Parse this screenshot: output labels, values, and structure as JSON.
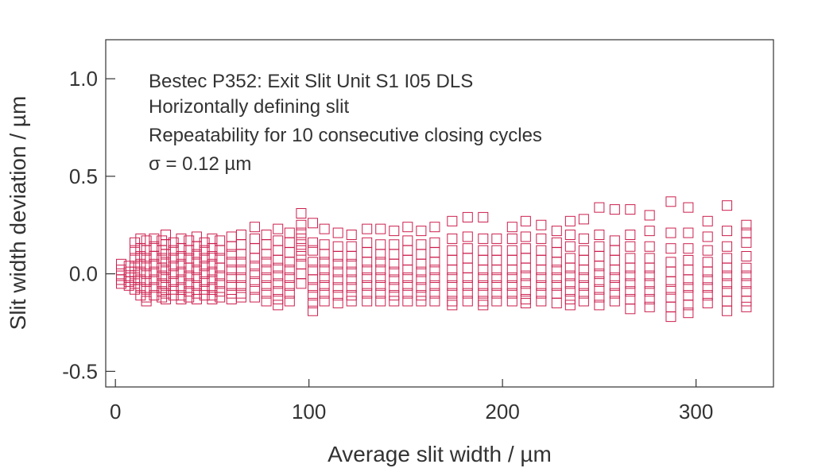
{
  "chart_data": {
    "type": "scatter",
    "marker": "open-square",
    "title": "",
    "annotations": [
      "Bestec P352: Exit Slit Unit S1 I05 DLS",
      "Horizontally defining slit",
      "Repeatability for 10 consecutive closing cycles",
      "σ = 0.12 µm"
    ],
    "xlabel": "Average slit width / µm",
    "ylabel": "Slit width deviation / µm",
    "xlim": [
      -5,
      340
    ],
    "ylim": [
      -0.58,
      1.2
    ],
    "xticks": [
      0,
      100,
      200,
      300
    ],
    "xtick_labels": [
      "0",
      "100",
      "200",
      "300"
    ],
    "yticks": [
      1.0,
      0.5,
      0.0,
      -0.5
    ],
    "ytick_labels": [
      "1.0",
      "0.5",
      "0.0",
      "-0.5"
    ],
    "grid": false,
    "colors": {
      "marker": "#cc1f4e",
      "axis": "#333333"
    },
    "columns": [
      {
        "x": 3,
        "y": [
          0.05,
          0.02,
          -0.01,
          -0.03,
          -0.05
        ]
      },
      {
        "x": 7,
        "y": [
          0.04,
          0.01,
          -0.02,
          -0.04,
          -0.06
        ]
      },
      {
        "x": 10,
        "y": [
          0.16,
          0.12,
          0.08,
          0.04,
          0.01,
          -0.02,
          -0.05,
          -0.08
        ]
      },
      {
        "x": 13,
        "y": [
          0.18,
          0.13,
          0.09,
          0.05,
          0.01,
          -0.03,
          -0.07,
          -0.11
        ]
      },
      {
        "x": 16,
        "y": [
          0.17,
          0.12,
          0.08,
          0.04,
          0.0,
          -0.04,
          -0.08,
          -0.12,
          -0.14
        ]
      },
      {
        "x": 20,
        "y": [
          0.18,
          0.14,
          0.09,
          0.05,
          0.01,
          -0.03,
          -0.07,
          -0.11
        ]
      },
      {
        "x": 24,
        "y": [
          0.17,
          0.12,
          0.08,
          0.03,
          -0.01,
          -0.05,
          -0.09,
          -0.12
        ]
      },
      {
        "x": 26,
        "y": [
          0.2,
          0.15,
          0.1,
          0.06,
          0.02,
          -0.02,
          -0.06,
          -0.1,
          -0.13
        ]
      },
      {
        "x": 30,
        "y": [
          0.16,
          0.12,
          0.08,
          0.04,
          0.0,
          -0.04,
          -0.08,
          -0.11
        ]
      },
      {
        "x": 34,
        "y": [
          0.18,
          0.13,
          0.09,
          0.05,
          0.01,
          -0.03,
          -0.07,
          -0.11,
          -0.13
        ]
      },
      {
        "x": 38,
        "y": [
          0.17,
          0.12,
          0.08,
          0.03,
          -0.01,
          -0.05,
          -0.09,
          -0.12
        ]
      },
      {
        "x": 42,
        "y": [
          0.19,
          0.14,
          0.1,
          0.06,
          0.02,
          -0.02,
          -0.06,
          -0.1,
          -0.13
        ]
      },
      {
        "x": 46,
        "y": [
          0.16,
          0.12,
          0.08,
          0.04,
          0.0,
          -0.04,
          -0.08,
          -0.11
        ]
      },
      {
        "x": 50,
        "y": [
          0.18,
          0.13,
          0.09,
          0.05,
          0.01,
          -0.03,
          -0.07,
          -0.11,
          -0.13
        ]
      },
      {
        "x": 54,
        "y": [
          0.17,
          0.12,
          0.08,
          0.03,
          -0.01,
          -0.05,
          -0.09,
          -0.12
        ]
      },
      {
        "x": 60,
        "y": [
          0.19,
          0.14,
          0.1,
          0.06,
          0.02,
          -0.02,
          -0.06,
          -0.1,
          -0.13
        ]
      },
      {
        "x": 65,
        "y": [
          0.2,
          0.15,
          0.1,
          0.06,
          0.02,
          -0.02,
          -0.06,
          -0.1,
          -0.12
        ]
      },
      {
        "x": 72,
        "y": [
          0.24,
          0.18,
          0.13,
          0.08,
          0.04,
          0.0,
          -0.04,
          -0.08,
          -0.12
        ]
      },
      {
        "x": 78,
        "y": [
          0.2,
          0.15,
          0.1,
          0.06,
          0.02,
          -0.02,
          -0.06,
          -0.1,
          -0.14
        ]
      },
      {
        "x": 84,
        "y": [
          0.23,
          0.17,
          0.12,
          0.07,
          0.03,
          -0.01,
          -0.05,
          -0.09,
          -0.13,
          -0.16
        ]
      },
      {
        "x": 90,
        "y": [
          0.21,
          0.16,
          0.11,
          0.06,
          0.02,
          -0.02,
          -0.06,
          -0.1,
          -0.14
        ]
      },
      {
        "x": 96,
        "y": [
          0.31,
          0.25,
          0.21,
          0.18,
          0.15,
          0.12,
          0.09,
          0.05,
          0.0,
          -0.05
        ]
      },
      {
        "x": 102,
        "y": [
          0.26,
          0.16,
          0.12,
          0.06,
          0.02,
          -0.03,
          -0.07,
          -0.11,
          -0.15,
          -0.19
        ]
      },
      {
        "x": 108,
        "y": [
          0.23,
          0.15,
          0.1,
          0.06,
          0.02,
          -0.02,
          -0.06,
          -0.1,
          -0.14
        ]
      },
      {
        "x": 115,
        "y": [
          0.21,
          0.14,
          0.09,
          0.05,
          0.01,
          -0.03,
          -0.07,
          -0.11,
          -0.15
        ]
      },
      {
        "x": 122,
        "y": [
          0.2,
          0.14,
          0.09,
          0.05,
          0.01,
          -0.03,
          -0.07,
          -0.11,
          -0.14
        ]
      },
      {
        "x": 130,
        "y": [
          0.23,
          0.16,
          0.11,
          0.06,
          0.02,
          -0.02,
          -0.06,
          -0.1,
          -0.14
        ]
      },
      {
        "x": 137,
        "y": [
          0.23,
          0.15,
          0.1,
          0.06,
          0.02,
          -0.02,
          -0.06,
          -0.1,
          -0.14
        ]
      },
      {
        "x": 144,
        "y": [
          0.22,
          0.15,
          0.1,
          0.05,
          0.01,
          -0.03,
          -0.07,
          -0.11,
          -0.14
        ]
      },
      {
        "x": 151,
        "y": [
          0.24,
          0.17,
          0.12,
          0.07,
          0.02,
          -0.02,
          -0.06,
          -0.1,
          -0.14
        ]
      },
      {
        "x": 158,
        "y": [
          0.22,
          0.15,
          0.1,
          0.05,
          0.01,
          -0.03,
          -0.07,
          -0.11,
          -0.14
        ]
      },
      {
        "x": 165,
        "y": [
          0.24,
          0.16,
          0.11,
          0.06,
          0.02,
          -0.02,
          -0.06,
          -0.1,
          -0.14
        ]
      },
      {
        "x": 174,
        "y": [
          0.27,
          0.18,
          0.12,
          0.07,
          0.02,
          -0.02,
          -0.06,
          -0.1,
          -0.14,
          -0.16
        ]
      },
      {
        "x": 182,
        "y": [
          0.29,
          0.19,
          0.13,
          0.08,
          0.03,
          -0.02,
          -0.06,
          -0.1,
          -0.14
        ]
      },
      {
        "x": 190,
        "y": [
          0.29,
          0.18,
          0.12,
          0.07,
          0.02,
          -0.02,
          -0.06,
          -0.1,
          -0.14,
          -0.16
        ]
      },
      {
        "x": 197,
        "y": [
          0.18,
          0.12,
          0.07,
          0.02,
          -0.02,
          -0.06,
          -0.1,
          -0.14
        ]
      },
      {
        "x": 205,
        "y": [
          0.24,
          0.18,
          0.12,
          0.07,
          0.02,
          -0.02,
          -0.06,
          -0.1,
          -0.14
        ]
      },
      {
        "x": 212,
        "y": [
          0.27,
          0.19,
          0.13,
          0.08,
          0.03,
          -0.01,
          -0.05,
          -0.09,
          -0.13,
          -0.15
        ]
      },
      {
        "x": 220,
        "y": [
          0.25,
          0.18,
          0.12,
          0.07,
          0.02,
          -0.02,
          -0.06,
          -0.1,
          -0.14
        ]
      },
      {
        "x": 228,
        "y": [
          0.22,
          0.16,
          0.11,
          0.06,
          0.02,
          -0.02,
          -0.06,
          -0.1,
          -0.15
        ]
      },
      {
        "x": 235,
        "y": [
          0.27,
          0.2,
          0.14,
          0.08,
          0.03,
          -0.01,
          -0.05,
          -0.09,
          -0.13,
          -0.16
        ]
      },
      {
        "x": 242,
        "y": [
          0.28,
          0.18,
          0.12,
          0.07,
          0.02,
          -0.02,
          -0.06,
          -0.1,
          -0.14
        ]
      },
      {
        "x": 250,
        "y": [
          0.34,
          0.2,
          0.14,
          0.09,
          0.04,
          0.0,
          -0.04,
          -0.08,
          -0.12,
          -0.16
        ]
      },
      {
        "x": 258,
        "y": [
          0.33,
          0.17,
          0.12,
          0.07,
          0.02,
          -0.02,
          -0.06,
          -0.1,
          -0.14
        ]
      },
      {
        "x": 266,
        "y": [
          0.33,
          0.2,
          0.14,
          0.08,
          0.03,
          -0.01,
          -0.05,
          -0.09,
          -0.13,
          -0.18
        ]
      },
      {
        "x": 276,
        "y": [
          0.3,
          0.22,
          0.14,
          0.08,
          0.03,
          -0.01,
          -0.05,
          -0.09,
          -0.13,
          -0.17
        ]
      },
      {
        "x": 287,
        "y": [
          0.37,
          0.21,
          0.13,
          0.06,
          0.01,
          -0.04,
          -0.08,
          -0.12,
          -0.17,
          -0.22
        ]
      },
      {
        "x": 296,
        "y": [
          0.34,
          0.21,
          0.13,
          0.07,
          0.02,
          -0.03,
          -0.07,
          -0.11,
          -0.16,
          -0.2
        ]
      },
      {
        "x": 306,
        "y": [
          0.27,
          0.19,
          0.12,
          0.06,
          0.01,
          -0.03,
          -0.07,
          -0.11,
          -0.15
        ]
      },
      {
        "x": 316,
        "y": [
          0.35,
          0.22,
          0.14,
          0.08,
          0.03,
          -0.01,
          -0.05,
          -0.09,
          -0.14,
          -0.19
        ]
      },
      {
        "x": 326,
        "y": [
          0.25,
          0.21,
          0.16,
          0.09,
          0.03,
          -0.01,
          -0.05,
          -0.09,
          -0.14,
          -0.17
        ]
      }
    ]
  }
}
